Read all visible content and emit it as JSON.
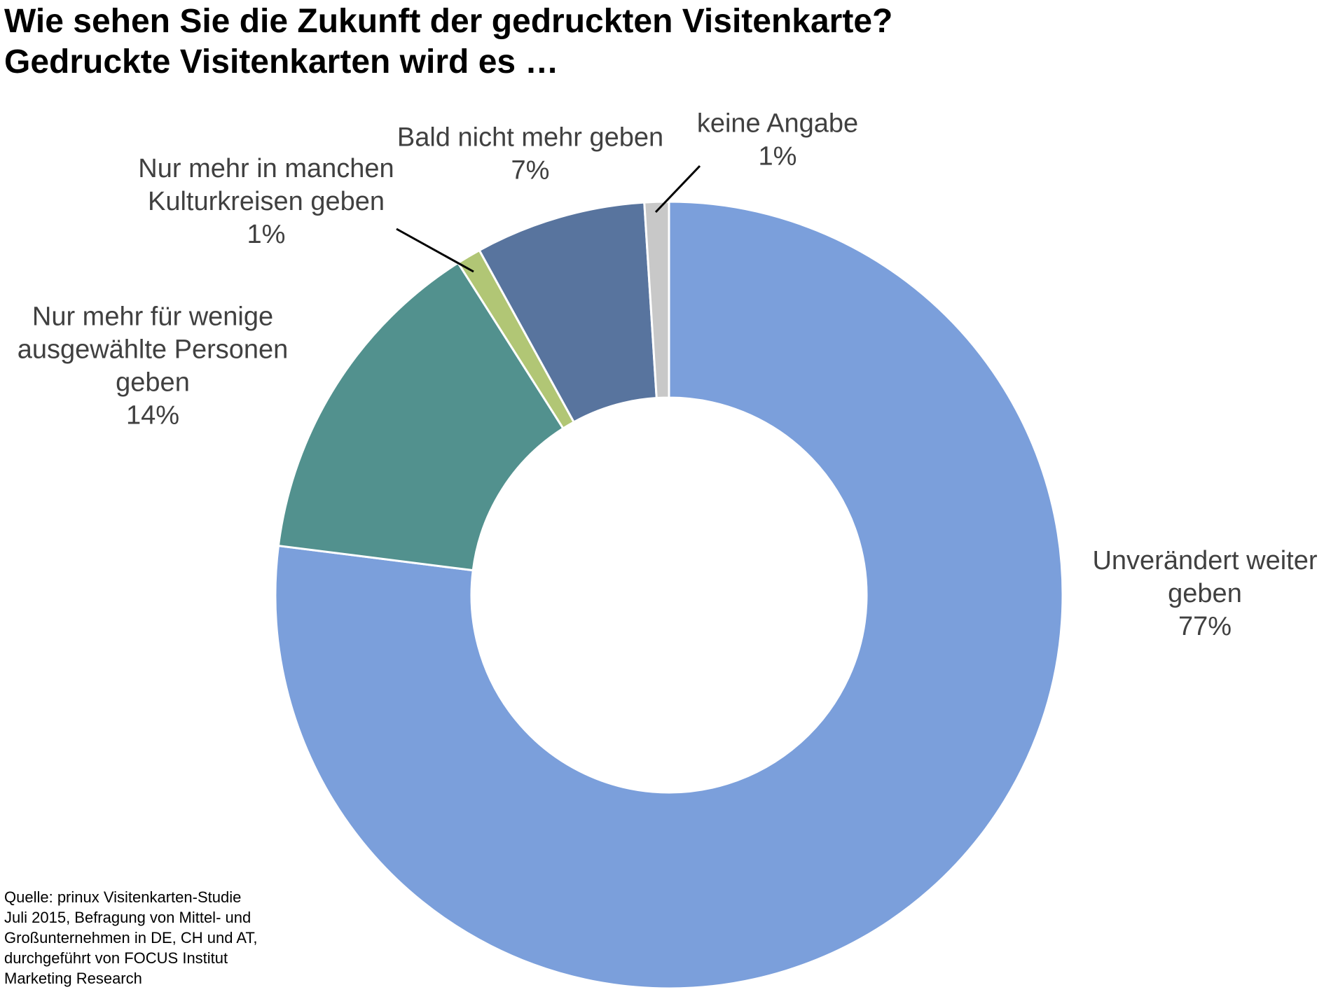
{
  "chart_data": {
    "type": "pie",
    "variant": "donut",
    "title": "Wie sehen Sie die Zukunft der gedruckten Visitenkarte?",
    "subtitle": "Gedruckte Visitenkarten wird es …",
    "legend": "none",
    "slices": [
      {
        "label_lines": [
          "Unverändert weiter",
          "geben"
        ],
        "value": 77,
        "value_label": "77%",
        "color": "#7b9fdb"
      },
      {
        "label_lines": [
          "Nur mehr für wenige",
          "ausgewählte Personen",
          "geben"
        ],
        "value": 14,
        "value_label": "14%",
        "color": "#52918e"
      },
      {
        "label_lines": [
          "Nur mehr in manchen",
          "Kulturkreisen geben"
        ],
        "value": 1,
        "value_label": "1%",
        "color": "#b1c675"
      },
      {
        "label_lines": [
          "Bald nicht mehr geben"
        ],
        "value": 7,
        "value_label": "7%",
        "color": "#58749e"
      },
      {
        "label_lines": [
          "keine Angabe"
        ],
        "value": 1,
        "value_label": "1%",
        "color": "#c8c8c8"
      }
    ]
  },
  "source": {
    "lines": [
      "Quelle: prinux Visitenkarten-Studie",
      "Juli 2015, Befragung von Mittel- und",
      "Großunternehmen in DE, CH und AT,",
      "durchgeführt von FOCUS Institut",
      "Marketing Research"
    ]
  }
}
